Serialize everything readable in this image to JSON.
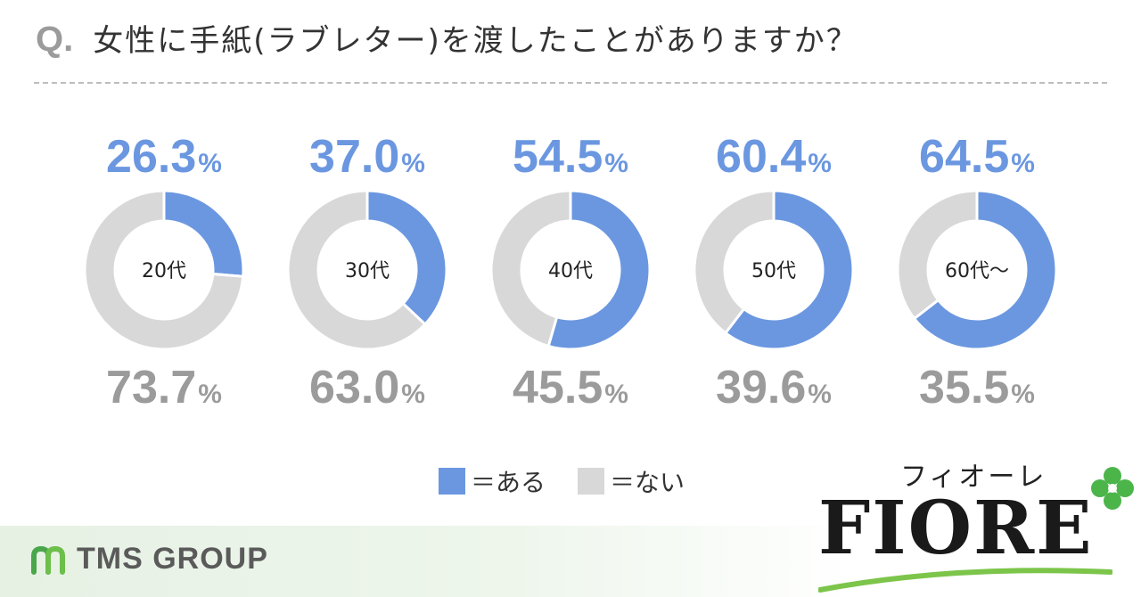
{
  "header": {
    "prefix": "Q.",
    "question": "女性に手紙(ラブレター)を渡したことがありますか？"
  },
  "chart_data": {
    "type": "pie",
    "categories": [
      "20代",
      "30代",
      "40代",
      "50代",
      "60代～"
    ],
    "series": [
      {
        "name": "＝ある",
        "values": [
          26.3,
          37.0,
          54.5,
          60.4,
          64.5
        ]
      },
      {
        "name": "＝ない",
        "values": [
          73.7,
          63.0,
          45.5,
          39.6,
          35.5
        ]
      }
    ],
    "unit": "%",
    "colors": {
      "yes": "#6b97e0",
      "no": "#d8d8d8",
      "yes_text": "#6b97e0",
      "no_text": "#9b9b9b"
    }
  },
  "legend": {
    "yes_label": "＝ある",
    "no_label": "＝ない"
  },
  "footer": {
    "tms_logo_icon": "tms-leaf-icon",
    "tms_text": "TMS GROUP",
    "brand_kana": "フィオーレ",
    "brand_name": "FIORE",
    "brand_icon": "clover-icon"
  }
}
